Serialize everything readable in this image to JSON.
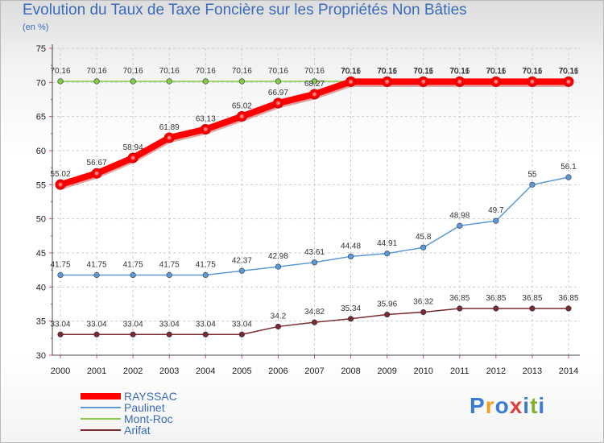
{
  "chart_data": {
    "type": "line",
    "title": "Evolution du Taux de Taxe Foncière sur les Propriétés Non Bâties",
    "subtitle": "(en %)",
    "x": [
      "2000",
      "2001",
      "2002",
      "2003",
      "2004",
      "2005",
      "2006",
      "2007",
      "2008",
      "2009",
      "2010",
      "2011",
      "2012",
      "2013",
      "2014"
    ],
    "ylim": [
      30,
      75
    ],
    "yticks": [
      "30",
      "35",
      "40",
      "45",
      "50",
      "55",
      "60",
      "65",
      "70",
      "75"
    ],
    "grid": true,
    "legend_position": "bottom-left",
    "series": [
      {
        "name": "Mont-Roc",
        "color": "#88cc44",
        "style": "thin",
        "values": [
          70.16,
          70.16,
          70.16,
          70.16,
          70.16,
          70.16,
          70.16,
          70.16,
          70.16,
          70.16,
          70.16,
          70.16,
          70.16,
          70.16,
          70.16
        ],
        "labels": [
          "70.16",
          "70.16",
          "70.16",
          "70.16",
          "70.16",
          "70.16",
          "70.16",
          "70.16",
          "70.16",
          "70.16",
          "70.16",
          "70.16",
          "70.16",
          "70.16",
          "70.16"
        ]
      },
      {
        "name": "RAYSSAC",
        "color": "#ff0000",
        "style": "thick",
        "values": [
          55.02,
          56.67,
          58.94,
          61.89,
          63.13,
          65.02,
          66.97,
          68.27,
          70.11,
          70.11,
          70.11,
          70.11,
          70.11,
          70.11,
          70.11
        ],
        "labels": [
          "55.02",
          "56.67",
          "58.94",
          "61.89",
          "63.13",
          "65.02",
          "66.97",
          "68.27",
          "70.11",
          "70.11",
          "70.11",
          "70.11",
          "70.11",
          "70.11",
          "70.11"
        ]
      },
      {
        "name": "Paulinet",
        "color": "#5b9bd5",
        "style": "thin",
        "values": [
          41.75,
          41.75,
          41.75,
          41.75,
          41.75,
          42.37,
          42.98,
          43.61,
          44.48,
          44.91,
          45.8,
          48.98,
          49.7,
          55,
          56.1
        ],
        "labels": [
          "41.75",
          "41.75",
          "41.75",
          "41.75",
          "41.75",
          "42.37",
          "42.98",
          "43.61",
          "44.48",
          "44.91",
          "45.8",
          "48.98",
          "49.7",
          "55",
          "56.1"
        ]
      },
      {
        "name": "Arifat",
        "color": "#7a2a2a",
        "style": "thin",
        "values": [
          33.04,
          33.04,
          33.04,
          33.04,
          33.04,
          33.04,
          34.2,
          34.82,
          35.34,
          35.96,
          36.32,
          36.85,
          36.85,
          36.85,
          36.85
        ],
        "labels": [
          "33.04",
          "33.04",
          "33.04",
          "33.04",
          "33.04",
          "33.04",
          "34.2",
          "34.82",
          "35.34",
          "35.96",
          "36.32",
          "36.85",
          "36.85",
          "36.85",
          "36.85"
        ]
      }
    ],
    "legend": [
      {
        "name": "RAYSSAC",
        "color": "#ff0000"
      },
      {
        "name": "Paulinet",
        "color": "#5b9bd5"
      },
      {
        "name": "Mont-Roc",
        "color": "#88cc44"
      },
      {
        "name": "Arifat",
        "color": "#7a2a2a"
      }
    ]
  },
  "logo": {
    "text": "Proxiti",
    "letters": [
      "P",
      "r",
      "o",
      "x",
      "i",
      "t",
      "i"
    ],
    "colors": [
      "#3a7bd5",
      "#f0a020",
      "#3a7bd5",
      "#e04040",
      "#3a7bd5",
      "#80b030",
      "#3a7bd5"
    ]
  }
}
